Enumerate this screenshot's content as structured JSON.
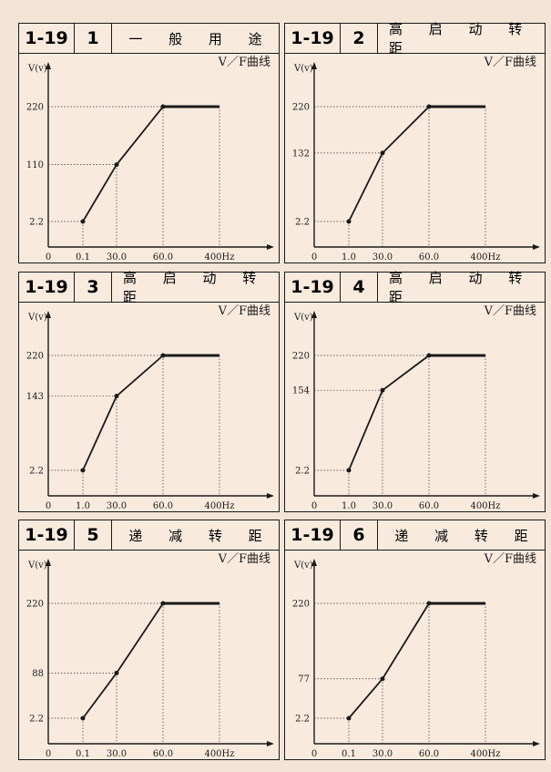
{
  "cards": [
    {
      "code": "1-19",
      "num": "1",
      "title": "一 般 用 途",
      "curve_label": "V／F曲线",
      "y_label": "V(v)",
      "y_ticks": [
        "220",
        "110",
        "2.2"
      ],
      "x_ticks": [
        "0",
        "0.1",
        "30.0",
        "60.0",
        "400Hz"
      ]
    },
    {
      "code": "1-19",
      "num": "2",
      "title": "高 启 动 转 距",
      "curve_label": "V／F曲线",
      "y_label": "V(v)",
      "y_ticks": [
        "220",
        "132",
        "2.2"
      ],
      "x_ticks": [
        "0",
        "1.0",
        "30.0",
        "60.0",
        "400Hz"
      ]
    },
    {
      "code": "1-19",
      "num": "3",
      "title": "高 启 动 转 距",
      "curve_label": "V／F曲线",
      "y_label": "V(v)",
      "y_ticks": [
        "220",
        "143",
        "2.2"
      ],
      "x_ticks": [
        "0",
        "1.0",
        "30.0",
        "60.0",
        "400Hz"
      ]
    },
    {
      "code": "1-19",
      "num": "4",
      "title": "高 启 动 转 距",
      "curve_label": "V／F曲线",
      "y_label": "V(v)",
      "y_ticks": [
        "220",
        "154",
        "2.2"
      ],
      "x_ticks": [
        "0",
        "1.0",
        "30.0",
        "60.0",
        "400Hz"
      ]
    },
    {
      "code": "1-19",
      "num": "5",
      "title": "递 减 转 距",
      "curve_label": "V／F曲线",
      "y_label": "V(v)",
      "y_ticks": [
        "220",
        "88",
        "2.2"
      ],
      "x_ticks": [
        "0",
        "0.1",
        "30.0",
        "60.0",
        "400Hz"
      ]
    },
    {
      "code": "1-19",
      "num": "6",
      "title": "递 减 转 距",
      "curve_label": "V／F曲线",
      "y_label": "V(v)",
      "y_ticks": [
        "220",
        "77",
        "2.2"
      ],
      "x_ticks": [
        "0",
        "0.1",
        "30.0",
        "60.0",
        "400Hz"
      ]
    }
  ],
  "chart_data": [
    {
      "type": "line",
      "x": [
        0.1,
        30.0,
        60.0,
        400
      ],
      "y": [
        2.2,
        110,
        220,
        220
      ]
    },
    {
      "type": "line",
      "x": [
        1.0,
        30.0,
        60.0,
        400
      ],
      "y": [
        2.2,
        132,
        220,
        220
      ]
    },
    {
      "type": "line",
      "x": [
        1.0,
        30.0,
        60.0,
        400
      ],
      "y": [
        2.2,
        143,
        220,
        220
      ]
    },
    {
      "type": "line",
      "x": [
        1.0,
        30.0,
        60.0,
        400
      ],
      "y": [
        2.2,
        154,
        220,
        220
      ]
    },
    {
      "type": "line",
      "x": [
        0.1,
        30.0,
        60.0,
        400
      ],
      "y": [
        2.2,
        88,
        220,
        220
      ]
    },
    {
      "type": "line",
      "x": [
        0.1,
        30.0,
        60.0,
        400
      ],
      "y": [
        2.2,
        77,
        220,
        220
      ]
    }
  ]
}
